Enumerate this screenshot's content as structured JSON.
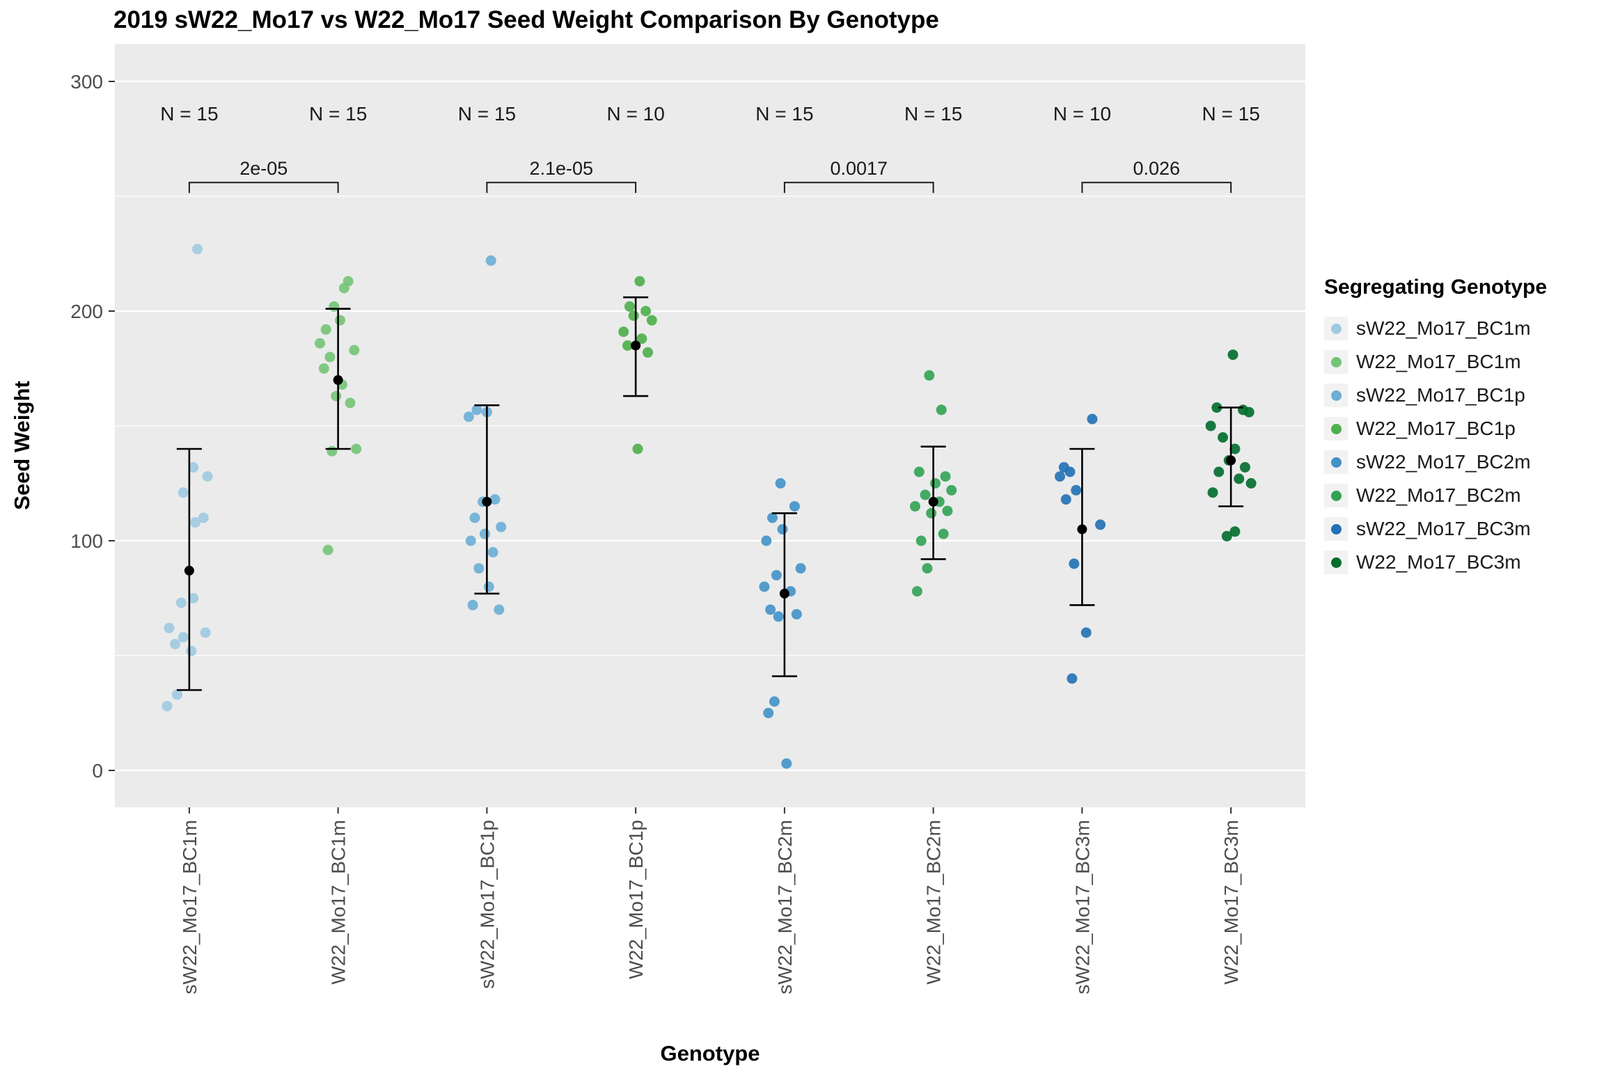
{
  "title": "2019 sW22_Mo17 vs W22_Mo17 Seed Weight Comparison By Genotype",
  "xlabel": "Genotype",
  "ylabel": "Seed Weight",
  "legend": {
    "title": "Segregating Genotype",
    "items": [
      {
        "label": "sW22_Mo17_BC1m",
        "color": "#9ecae1"
      },
      {
        "label": "W22_Mo17_BC1m",
        "color": "#74c476"
      },
      {
        "label": "sW22_Mo17_BC1p",
        "color": "#6baed6"
      },
      {
        "label": "W22_Mo17_BC1p",
        "color": "#4daf4a"
      },
      {
        "label": "sW22_Mo17_BC2m",
        "color": "#4292c6"
      },
      {
        "label": "W22_Mo17_BC2m",
        "color": "#31a354"
      },
      {
        "label": "sW22_Mo17_BC3m",
        "color": "#2171b5"
      },
      {
        "label": "W22_Mo17_BC3m",
        "color": "#006d2c"
      }
    ]
  },
  "chart_data": {
    "type": "scatter",
    "title": "2019 sW22_Mo17 vs W22_Mo17 Seed Weight Comparison By Genotype",
    "xlabel": "Genotype",
    "ylabel": "Seed Weight",
    "ylim": [
      0,
      300
    ],
    "yticks": [
      0,
      100,
      200,
      300
    ],
    "yticks_minor": [
      50,
      150,
      250
    ],
    "grid": true,
    "legend_position": "right",
    "panel_background": "#ebebeb",
    "n_label_y": 283,
    "groups": [
      {
        "label": "sW22_Mo17_BC1m",
        "n_label": "N = 15",
        "color": "#9ecae1",
        "points": [
          [
            227,
            0.2
          ],
          [
            132,
            0.1
          ],
          [
            128,
            0.45
          ],
          [
            121,
            -0.15
          ],
          [
            110,
            0.35
          ],
          [
            108,
            0.15
          ],
          [
            75,
            0.1
          ],
          [
            73,
            -0.2
          ],
          [
            62,
            -0.5
          ],
          [
            60,
            0.4
          ],
          [
            58,
            -0.15
          ],
          [
            55,
            -0.35
          ],
          [
            52,
            0.05
          ],
          [
            33,
            -0.3
          ],
          [
            28,
            -0.55
          ]
        ],
        "mean": 87,
        "err_low": 35,
        "err_high": 140
      },
      {
        "label": "W22_Mo17_BC1m",
        "n_label": "N = 15",
        "color": "#74c476",
        "points": [
          [
            213,
            0.25
          ],
          [
            210,
            0.15
          ],
          [
            202,
            -0.1
          ],
          [
            196,
            0.05
          ],
          [
            192,
            -0.3
          ],
          [
            186,
            -0.45
          ],
          [
            183,
            0.4
          ],
          [
            180,
            -0.2
          ],
          [
            175,
            -0.35
          ],
          [
            168,
            0.1
          ],
          [
            163,
            -0.05
          ],
          [
            160,
            0.3
          ],
          [
            140,
            0.45
          ],
          [
            139,
            -0.15
          ],
          [
            96,
            -0.25
          ]
        ],
        "mean": 170,
        "err_low": 140,
        "err_high": 201
      },
      {
        "label": "sW22_Mo17_BC1p",
        "n_label": "N = 15",
        "color": "#6baed6",
        "points": [
          [
            222,
            0.1
          ],
          [
            157,
            -0.25
          ],
          [
            156,
            0
          ],
          [
            154,
            -0.45
          ],
          [
            118,
            0.2
          ],
          [
            117,
            -0.1
          ],
          [
            110,
            -0.3
          ],
          [
            106,
            0.35
          ],
          [
            103,
            -0.05
          ],
          [
            100,
            -0.4
          ],
          [
            95,
            0.15
          ],
          [
            88,
            -0.2
          ],
          [
            80,
            0.05
          ],
          [
            72,
            -0.35
          ],
          [
            70,
            0.3
          ]
        ],
        "mean": 117,
        "err_low": 77,
        "err_high": 159
      },
      {
        "label": "W22_Mo17_BC1p",
        "n_label": "N = 10",
        "color": "#4daf4a",
        "points": [
          [
            213,
            0.1
          ],
          [
            202,
            -0.15
          ],
          [
            200,
            0.25
          ],
          [
            198,
            -0.05
          ],
          [
            196,
            0.4
          ],
          [
            191,
            -0.3
          ],
          [
            188,
            0.15
          ],
          [
            185,
            -0.2
          ],
          [
            182,
            0.3
          ],
          [
            140,
            0.05
          ]
        ],
        "mean": 185,
        "err_low": 163,
        "err_high": 206
      },
      {
        "label": "sW22_Mo17_BC2m",
        "n_label": "N = 15",
        "color": "#4292c6",
        "points": [
          [
            125,
            -0.1
          ],
          [
            115,
            0.25
          ],
          [
            110,
            -0.3
          ],
          [
            105,
            -0.05
          ],
          [
            100,
            -0.45
          ],
          [
            88,
            0.4
          ],
          [
            85,
            -0.2
          ],
          [
            80,
            -0.5
          ],
          [
            78,
            0.15
          ],
          [
            70,
            -0.35
          ],
          [
            68,
            0.3
          ],
          [
            67,
            -0.15
          ],
          [
            30,
            -0.25
          ],
          [
            25,
            -0.4
          ],
          [
            3,
            0.05
          ]
        ],
        "mean": 77,
        "err_low": 41,
        "err_high": 112
      },
      {
        "label": "W22_Mo17_BC2m",
        "n_label": "N = 15",
        "color": "#31a354",
        "points": [
          [
            172,
            -0.1
          ],
          [
            157,
            0.2
          ],
          [
            130,
            -0.35
          ],
          [
            128,
            0.3
          ],
          [
            125,
            0.05
          ],
          [
            122,
            0.45
          ],
          [
            120,
            -0.2
          ],
          [
            117,
            0.15
          ],
          [
            115,
            -0.45
          ],
          [
            113,
            0.35
          ],
          [
            112,
            -0.05
          ],
          [
            103,
            0.25
          ],
          [
            100,
            -0.3
          ],
          [
            88,
            -0.15
          ],
          [
            78,
            -0.4
          ]
        ],
        "mean": 117,
        "err_low": 92,
        "err_high": 141
      },
      {
        "label": "sW22_Mo17_BC3m",
        "n_label": "N = 10",
        "color": "#2171b5",
        "points": [
          [
            153,
            0.25
          ],
          [
            132,
            -0.45
          ],
          [
            130,
            -0.3
          ],
          [
            128,
            -0.55
          ],
          [
            122,
            -0.15
          ],
          [
            118,
            -0.4
          ],
          [
            107,
            0.45
          ],
          [
            90,
            -0.2
          ],
          [
            60,
            0.1
          ],
          [
            40,
            -0.25
          ]
        ],
        "mean": 105,
        "err_low": 72,
        "err_high": 140
      },
      {
        "label": "W22_Mo17_BC3m",
        "n_label": "N = 15",
        "color": "#006d2c",
        "points": [
          [
            181,
            0.05
          ],
          [
            158,
            -0.35
          ],
          [
            157,
            0.3
          ],
          [
            156,
            0.45
          ],
          [
            150,
            -0.5
          ],
          [
            145,
            -0.2
          ],
          [
            140,
            0.1
          ],
          [
            135,
            -0.05
          ],
          [
            132,
            0.35
          ],
          [
            130,
            -0.3
          ],
          [
            127,
            0.2
          ],
          [
            125,
            0.5
          ],
          [
            121,
            -0.45
          ],
          [
            104,
            0.1
          ],
          [
            102,
            -0.1
          ]
        ],
        "mean": 135,
        "err_low": 115,
        "err_high": 158
      }
    ],
    "comparisons": [
      {
        "groups": [
          0,
          1
        ],
        "p_label": "2e-05",
        "bar_y": 256
      },
      {
        "groups": [
          2,
          3
        ],
        "p_label": "2.1e-05",
        "bar_y": 256
      },
      {
        "groups": [
          4,
          5
        ],
        "p_label": "0.0017",
        "bar_y": 256
      },
      {
        "groups": [
          6,
          7
        ],
        "p_label": "0.026",
        "bar_y": 256
      }
    ]
  }
}
